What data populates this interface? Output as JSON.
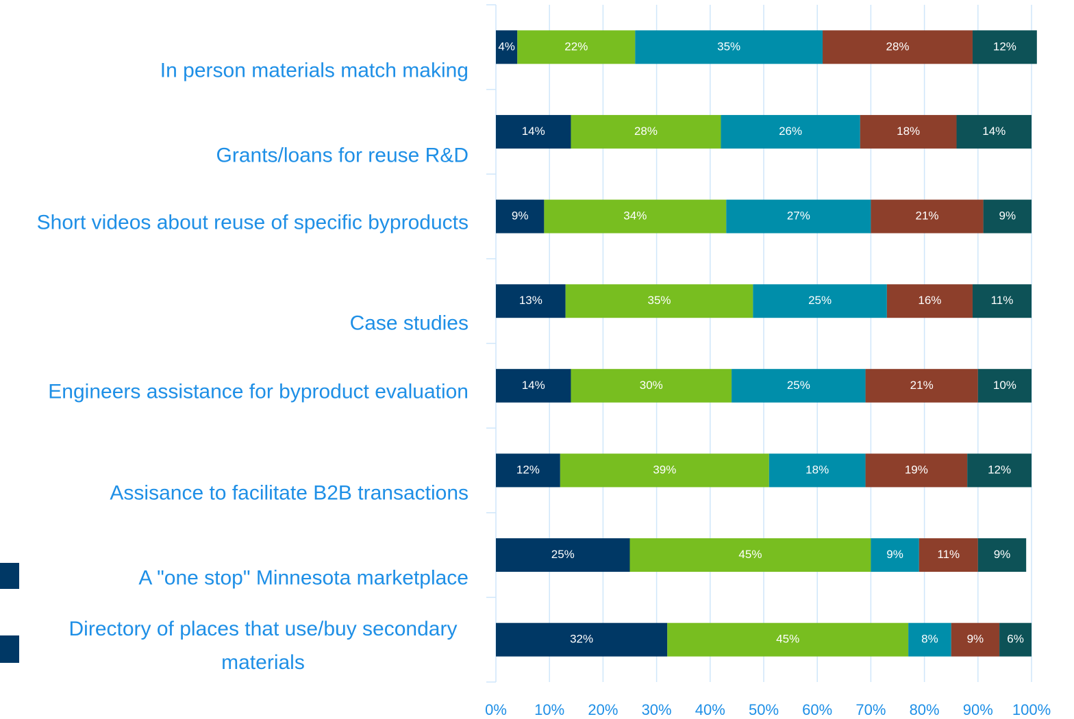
{
  "chart_data": {
    "type": "bar",
    "orientation": "horizontal",
    "stacked": true,
    "categories": [
      "In person materials match making",
      "Grants/loans for reuse R&D",
      "Short videos about reuse of specific byproducts",
      "Case studies",
      "Engineers assistance for byproduct evaluation",
      "Assisance to facilitate B2B transactions",
      "A \"one stop\" Minnesota marketplace",
      "Directory of places that use/buy secondary materials"
    ],
    "series": [
      {
        "color": "#003865",
        "values": [
          4,
          14,
          9,
          13,
          14,
          12,
          25,
          32
        ],
        "value_labels": [
          "4%",
          "14%",
          "9%",
          "13%",
          "14%",
          "12%",
          "25%",
          "32%"
        ]
      },
      {
        "color": "#78be20",
        "values": [
          22,
          28,
          34,
          35,
          30,
          39,
          45,
          45
        ],
        "value_labels": [
          "22%",
          "28%",
          "34%",
          "35%",
          "30%",
          "39%",
          "45%",
          "45%"
        ]
      },
      {
        "color": "#008eaa",
        "values": [
          35,
          26,
          27,
          25,
          25,
          18,
          9,
          8
        ],
        "value_labels": [
          "35%",
          "26%",
          "27%",
          "25%",
          "25%",
          "18%",
          "9%",
          "8%"
        ]
      },
      {
        "color": "#8d3f2b",
        "values": [
          28,
          18,
          21,
          16,
          21,
          19,
          11,
          9
        ],
        "value_labels": [
          "28%",
          "18%",
          "21%",
          "16%",
          "21%",
          "19%",
          "11%",
          "9%"
        ]
      },
      {
        "color": "#0d5257",
        "values": [
          12,
          14,
          9,
          11,
          10,
          12,
          9,
          6
        ],
        "value_labels": [
          "12%",
          "14%",
          "9%",
          "11%",
          "10%",
          "12%",
          "9%",
          "6%"
        ]
      }
    ],
    "xlim": [
      0,
      100
    ],
    "xticks": [
      {
        "value": 0,
        "label": "0%"
      },
      {
        "value": 10,
        "label": "10%"
      },
      {
        "value": 20,
        "label": "20%"
      },
      {
        "value": 30,
        "label": "30%"
      },
      {
        "value": 40,
        "label": "40%"
      },
      {
        "value": 50,
        "label": "50%"
      },
      {
        "value": 60,
        "label": "60%"
      },
      {
        "value": 70,
        "label": "70%"
      },
      {
        "value": 80,
        "label": "80%"
      },
      {
        "value": 90,
        "label": "90%"
      },
      {
        "value": 100,
        "label": "100%"
      }
    ],
    "grid": true
  }
}
